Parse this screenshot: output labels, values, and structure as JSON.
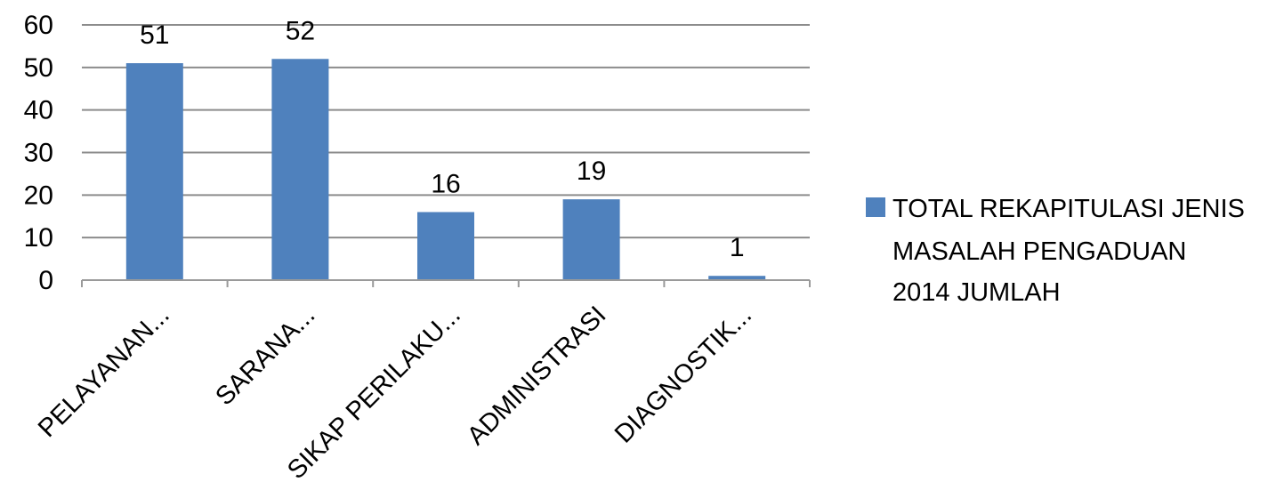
{
  "chart_data": {
    "type": "bar",
    "categories": [
      "PELAYANAN...",
      "SARANA...",
      "SIKAP PERILAKU...",
      "ADMINISTRASI",
      "DIAGNOSTIK..."
    ],
    "series": [
      {
        "name": "TOTAL REKAPITULASI JENIS MASALAH PENGADUAN 2014 JUMLAH",
        "values": [
          51,
          52,
          16,
          19,
          1
        ],
        "color": "#4f81bd"
      }
    ],
    "data_labels": [
      "51",
      "52",
      "16",
      "19",
      "1"
    ],
    "yticks": [
      "0",
      "10",
      "20",
      "30",
      "40",
      "50",
      "60"
    ],
    "ylim": [
      0,
      60
    ],
    "grid": true,
    "legend_position": "right",
    "legend_lines": [
      "TOTAL REKAPITULASI JENIS",
      "MASALAH PENGADUAN",
      "2014 JUMLAH"
    ]
  }
}
